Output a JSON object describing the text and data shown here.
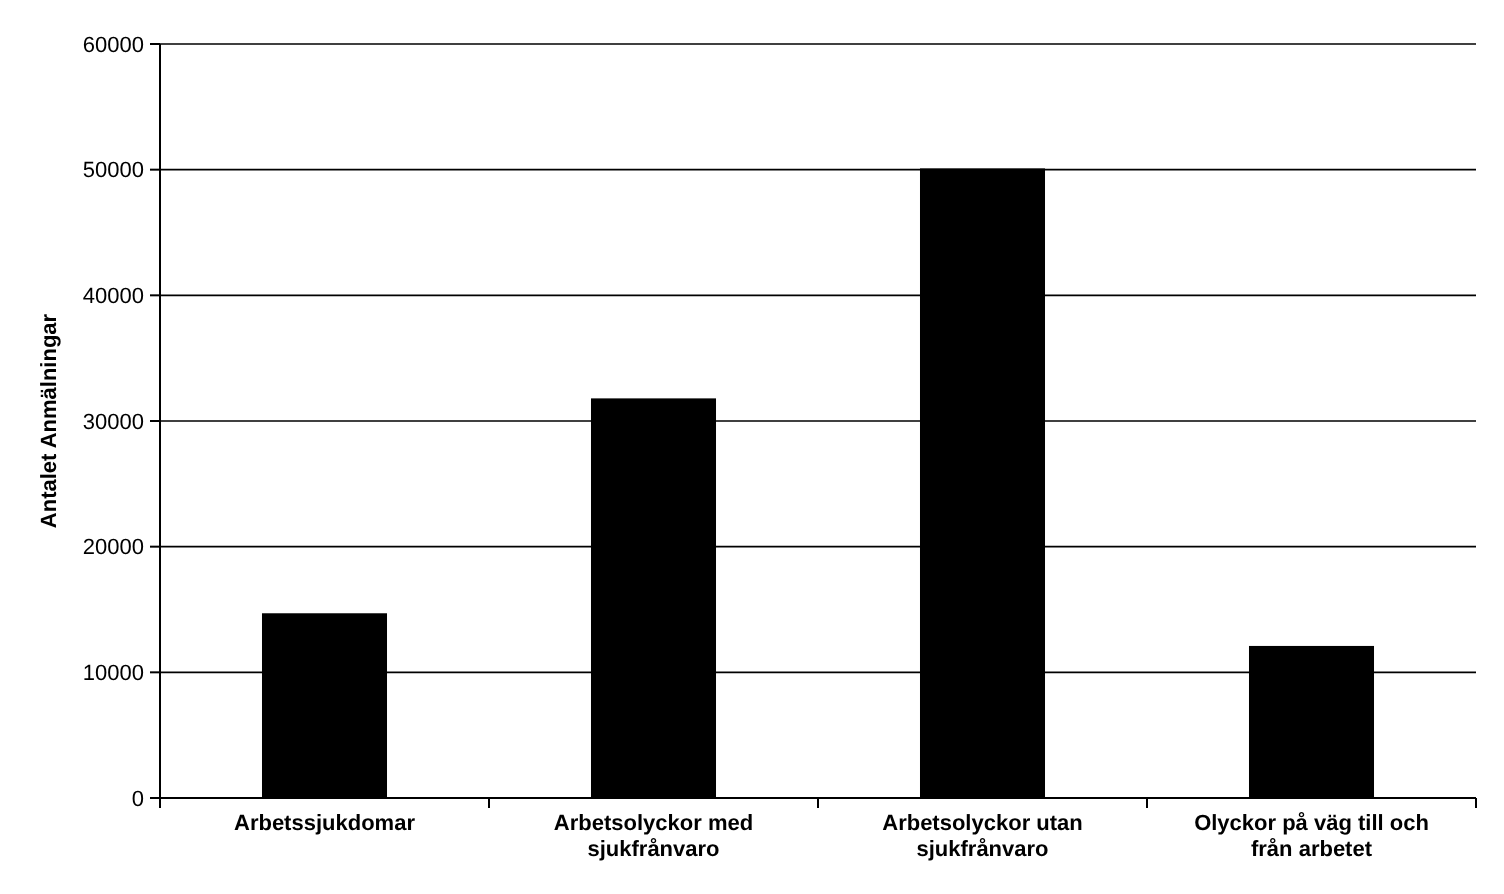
{
  "chart_data": {
    "type": "bar",
    "ylabel": "Antalet Anmälningar",
    "categories": [
      "Arbetssjukdomar",
      "Arbetsolyckor med sjukfrånvaro",
      "Arbetsolyckor utan sjukfrånvaro",
      "Olyckor på väg till och från arbetet"
    ],
    "values": [
      14700,
      31800,
      50100,
      12100
    ],
    "color": "#000000",
    "ylim": [
      0,
      60000
    ],
    "yticks": [
      0,
      10000,
      20000,
      30000,
      40000,
      50000,
      60000
    ],
    "grid": "y"
  }
}
